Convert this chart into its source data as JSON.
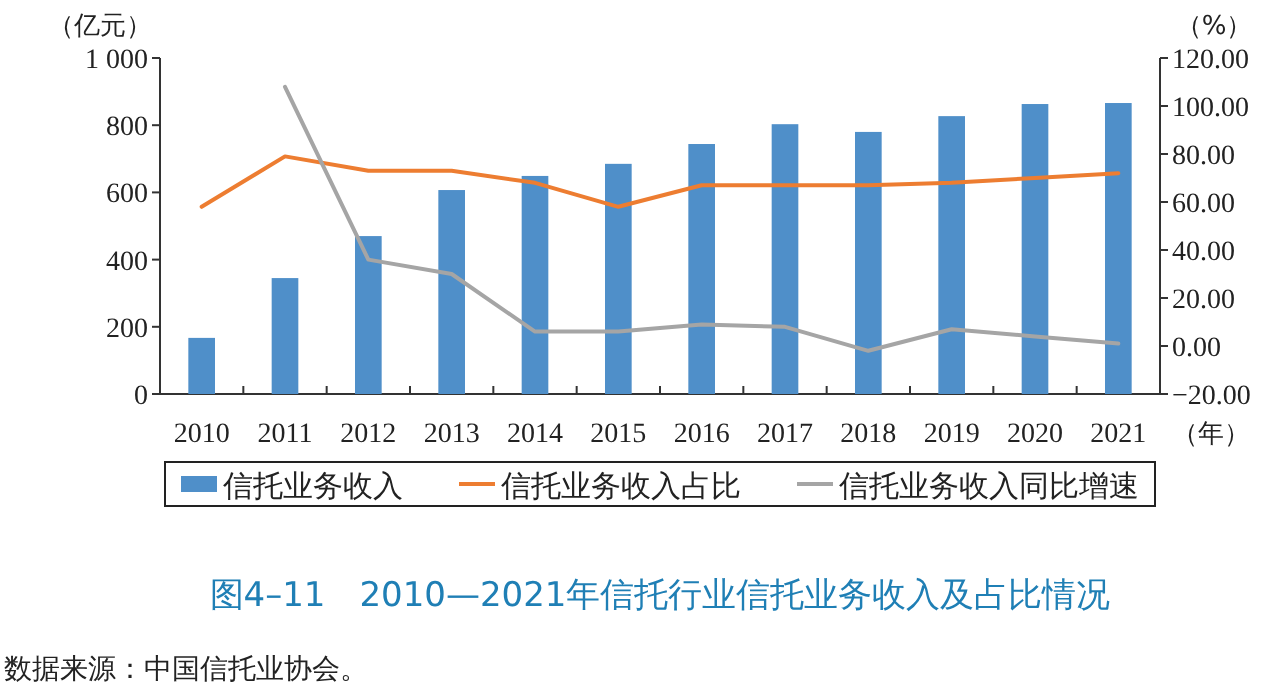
{
  "chart_data": {
    "type": "bar",
    "title": "图4–11　2010—2021年信托行业信托业务收入及占比情况",
    "annotations": [
      "数据来源：中国信托业协会。"
    ],
    "xlabel": "（年）",
    "ylabel": "（亿元）",
    "y2label": "（%）",
    "categories": [
      "2010",
      "2011",
      "2012",
      "2013",
      "2014",
      "2015",
      "2016",
      "2017",
      "2018",
      "2019",
      "2020",
      "2021"
    ],
    "series": [
      {
        "name": "信托业务收入",
        "color": "#4f8fc9",
        "values": [
          167,
          345,
          470,
          607,
          649,
          685,
          744,
          803,
          780,
          827,
          863,
          866
        ]
      },
      {
        "name": "信托业务收入占比",
        "type": "line",
        "axis": "y2",
        "color": "#ed7d31",
        "values": [
          58,
          79,
          73,
          73,
          68,
          58,
          67,
          67,
          67,
          68,
          70,
          72
        ]
      },
      {
        "name": "信托业务收入同比增速",
        "type": "line",
        "axis": "y2",
        "color": "#a5a5a5",
        "values": [
          null,
          108,
          36,
          30,
          6,
          6,
          9,
          8,
          -2,
          7,
          4,
          1
        ]
      }
    ],
    "ylim": [
      0,
      1000
    ],
    "yticks": [
      0,
      200,
      400,
      600,
      800,
      {
        "value": 1000,
        "label": "1 000"
      }
    ],
    "y2lim": [
      -20,
      120
    ],
    "y2ticks": [
      {
        "value": -20,
        "label": "−20.00"
      },
      {
        "value": 0,
        "label": "0.00"
      },
      {
        "value": 20,
        "label": "20.00"
      },
      {
        "value": 40,
        "label": "40.00"
      },
      {
        "value": 60,
        "label": "60.00"
      },
      {
        "value": 80,
        "label": "80.00"
      },
      {
        "value": 100,
        "label": "100.00"
      },
      {
        "value": 120,
        "label": "120.00"
      }
    ],
    "legend": "bottom"
  }
}
